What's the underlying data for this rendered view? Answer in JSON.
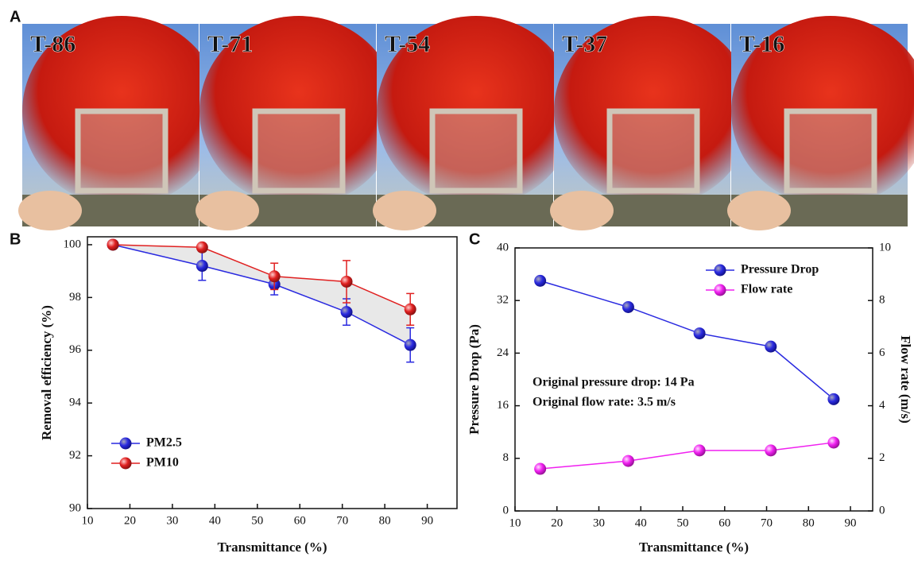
{
  "panel_labels": [
    "A",
    "B",
    "C"
  ],
  "photos": {
    "labels": [
      "T-86",
      "T-71",
      "T-54",
      "T-37",
      "T-16"
    ]
  },
  "chart_data": [
    {
      "type": "line",
      "x_label": "Transmittance (%)",
      "y_label": "Removal efficiency (%)",
      "x": [
        16,
        37,
        54,
        71,
        86
      ],
      "series": [
        {
          "name": "PM2.5",
          "color": "#2a2ae0",
          "values": [
            100,
            99.2,
            98.5,
            97.45,
            96.2
          ],
          "errors": [
            0,
            0.55,
            0.4,
            0.5,
            0.65
          ]
        },
        {
          "name": "PM10",
          "color": "#e02020",
          "values": [
            100,
            99.9,
            98.8,
            98.6,
            97.55
          ],
          "errors": [
            0,
            0.15,
            0.5,
            0.8,
            0.6
          ]
        }
      ],
      "xlim": [
        10,
        97
      ],
      "xticks": [
        10,
        20,
        30,
        40,
        50,
        60,
        70,
        80,
        90
      ],
      "ylim": [
        90,
        100.3
      ],
      "yticks": [
        90,
        92,
        94,
        96,
        98,
        100
      ],
      "legend": "lower left",
      "fill_between": true
    },
    {
      "type": "line",
      "x_label": "Transmittance (%)",
      "y_label": "Pressure Drop (Pa)",
      "y2_label": "Flow rate (m/s)",
      "x": [
        16,
        37,
        54,
        71,
        86
      ],
      "series": [
        {
          "name": "Pressure Drop",
          "color": "#2a2ae0",
          "values": [
            35,
            31,
            27,
            25,
            17
          ]
        },
        {
          "name": "Flow rate",
          "color": "#f020f0",
          "values": [
            1.6,
            1.9,
            2.3,
            2.3,
            2.6
          ],
          "axis": "y2"
        }
      ],
      "annotations": [
        "Original pressure drop: 14 Pa",
        "Original flow rate: 3.5 m/s"
      ],
      "xlim": [
        10,
        95.3
      ],
      "xticks": [
        10,
        20,
        30,
        40,
        50,
        60,
        70,
        80,
        90
      ],
      "ylim": [
        0,
        40
      ],
      "yticks": [
        0,
        8,
        16,
        24,
        32,
        40
      ],
      "y2lim": [
        0,
        10
      ],
      "y2ticks": [
        0,
        2,
        4,
        6,
        8,
        10
      ],
      "legend": "upper right"
    }
  ]
}
